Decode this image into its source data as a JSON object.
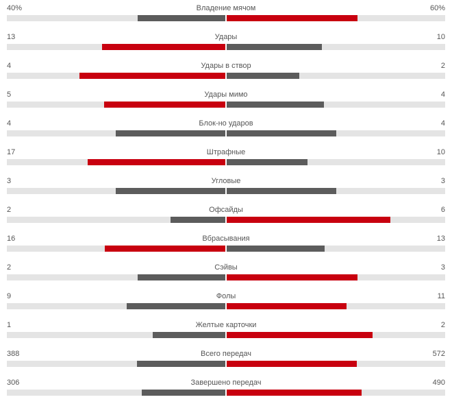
{
  "colors": {
    "leader": "#c8000f",
    "trailer": "#5c5c5c",
    "track": "#e4e4e4"
  },
  "stats": [
    {
      "name": "Владение мячом",
      "home": "40%",
      "away": "60%",
      "home_share": 0.4,
      "away_share": 0.6,
      "leader": "away"
    },
    {
      "name": "Удары",
      "home": "13",
      "away": "10",
      "home_share": 0.565,
      "away_share": 0.435,
      "leader": "home"
    },
    {
      "name": "Удары в створ",
      "home": "4",
      "away": "2",
      "home_share": 0.667,
      "away_share": 0.333,
      "leader": "home"
    },
    {
      "name": "Удары мимо",
      "home": "5",
      "away": "4",
      "home_share": 0.556,
      "away_share": 0.444,
      "leader": "home"
    },
    {
      "name": "Блок-но ударов",
      "home": "4",
      "away": "4",
      "home_share": 0.5,
      "away_share": 0.5,
      "leader": "none"
    },
    {
      "name": "Штрафные",
      "home": "17",
      "away": "10",
      "home_share": 0.63,
      "away_share": 0.37,
      "leader": "home"
    },
    {
      "name": "Угловые",
      "home": "3",
      "away": "3",
      "home_share": 0.5,
      "away_share": 0.5,
      "leader": "none"
    },
    {
      "name": "Офсайды",
      "home": "2",
      "away": "6",
      "home_share": 0.25,
      "away_share": 0.75,
      "leader": "away"
    },
    {
      "name": "Вбрасывания",
      "home": "16",
      "away": "13",
      "home_share": 0.552,
      "away_share": 0.448,
      "leader": "home"
    },
    {
      "name": "Сэйвы",
      "home": "2",
      "away": "3",
      "home_share": 0.4,
      "away_share": 0.6,
      "leader": "away"
    },
    {
      "name": "Фолы",
      "home": "9",
      "away": "11",
      "home_share": 0.45,
      "away_share": 0.55,
      "leader": "away"
    },
    {
      "name": "Желтые карточки",
      "home": "1",
      "away": "2",
      "home_share": 0.333,
      "away_share": 0.667,
      "leader": "away"
    },
    {
      "name": "Всего передач",
      "home": "388",
      "away": "572",
      "home_share": 0.404,
      "away_share": 0.596,
      "leader": "away"
    },
    {
      "name": "Завершено передач",
      "home": "306",
      "away": "490",
      "home_share": 0.384,
      "away_share": 0.616,
      "leader": "away"
    }
  ]
}
